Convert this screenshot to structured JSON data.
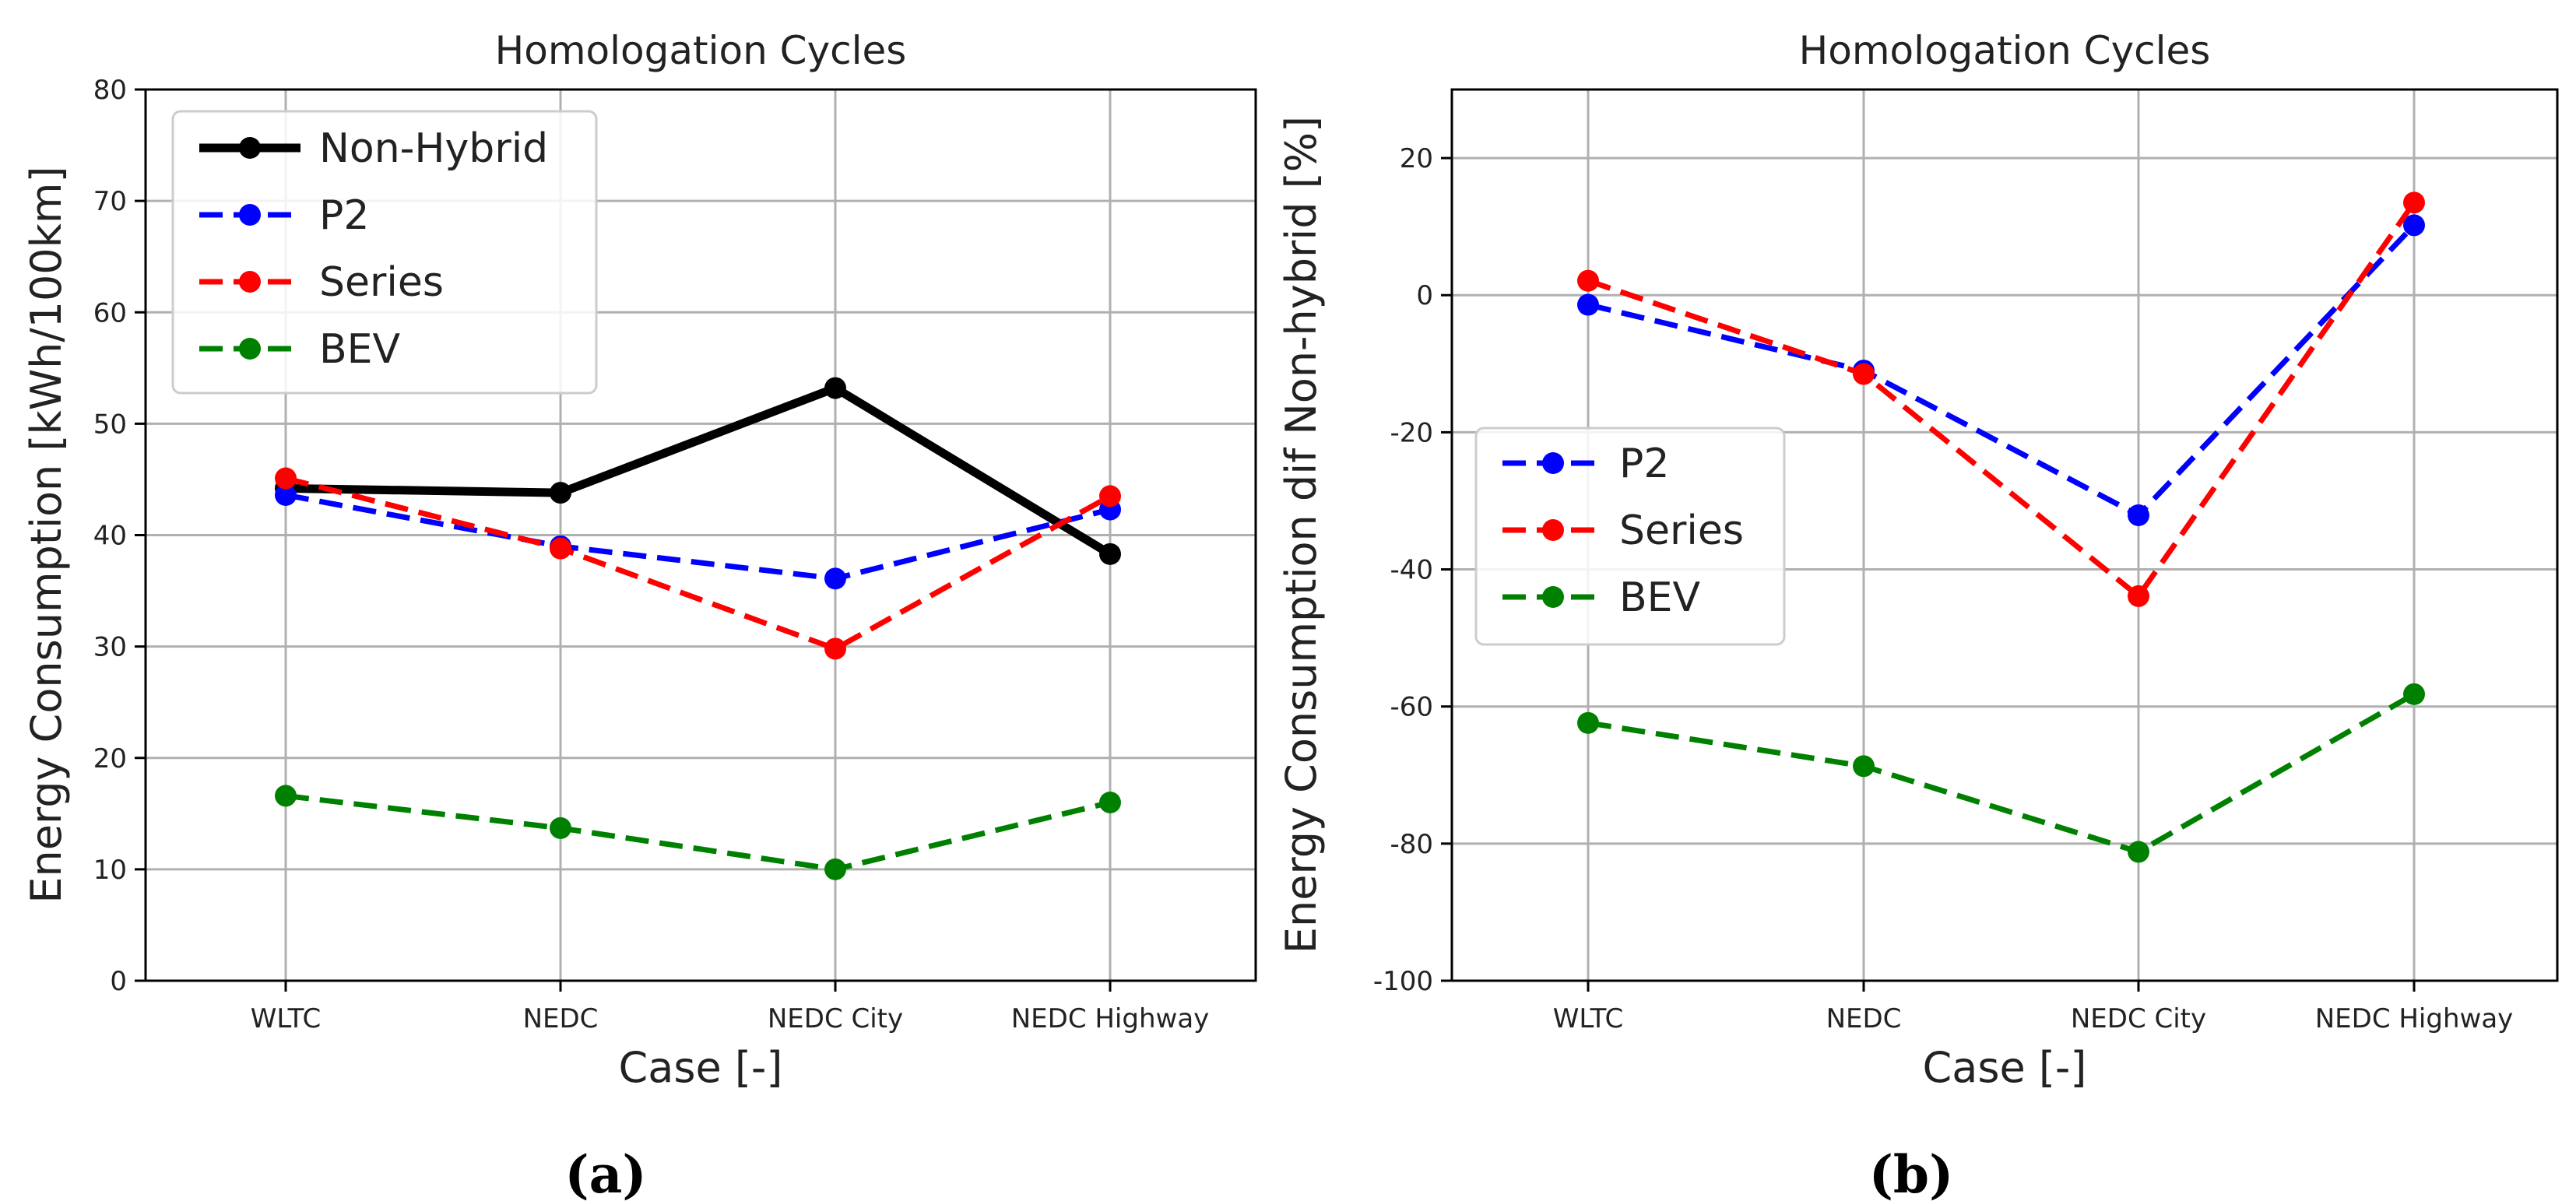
{
  "chart_data": [
    {
      "type": "line",
      "title": "Homologation Cycles",
      "xlabel": "Case [-]",
      "ylabel": "Energy Consumption [kWh/100km]",
      "categories": [
        "WLTC",
        "NEDC",
        "NEDC City",
        "NEDC Highway"
      ],
      "ylim": [
        0,
        80
      ],
      "yticks": [
        0,
        10,
        20,
        30,
        40,
        50,
        60,
        70,
        80
      ],
      "grid": true,
      "legend_position": "top-left",
      "sublabel": "(a)",
      "series": [
        {
          "name": "Non-Hybrid",
          "color": "#000000",
          "style": "solid",
          "values": [
            44.2,
            43.8,
            53.2,
            38.3
          ]
        },
        {
          "name": "P2",
          "color": "#0000ff",
          "style": "dashed",
          "values": [
            43.6,
            39.0,
            36.1,
            42.3
          ]
        },
        {
          "name": "Series",
          "color": "#ff0000",
          "style": "dashed",
          "values": [
            45.1,
            38.8,
            29.8,
            43.5
          ]
        },
        {
          "name": "BEV",
          "color": "#008000",
          "style": "dashed",
          "values": [
            16.6,
            13.7,
            10.0,
            16.0
          ]
        }
      ]
    },
    {
      "type": "line",
      "title": "Homologation Cycles",
      "xlabel": "Case [-]",
      "ylabel": "Energy Consumption dif Non-hybrid [%]",
      "categories": [
        "WLTC",
        "NEDC",
        "NEDC City",
        "NEDC Highway"
      ],
      "ylim": [
        -100,
        30
      ],
      "yticks": [
        -100,
        -80,
        -60,
        -40,
        -20,
        0,
        20
      ],
      "grid": true,
      "legend_position": "center-left",
      "sublabel": "(b)",
      "series": [
        {
          "name": "P2",
          "color": "#0000ff",
          "style": "dashed",
          "values": [
            -1.4,
            -11.0,
            -32.1,
            10.2
          ]
        },
        {
          "name": "Series",
          "color": "#ff0000",
          "style": "dashed",
          "values": [
            2.1,
            -11.5,
            -43.9,
            13.5
          ]
        },
        {
          "name": "BEV",
          "color": "#008000",
          "style": "dashed",
          "values": [
            -62.4,
            -68.7,
            -81.2,
            -58.2
          ]
        }
      ]
    }
  ]
}
